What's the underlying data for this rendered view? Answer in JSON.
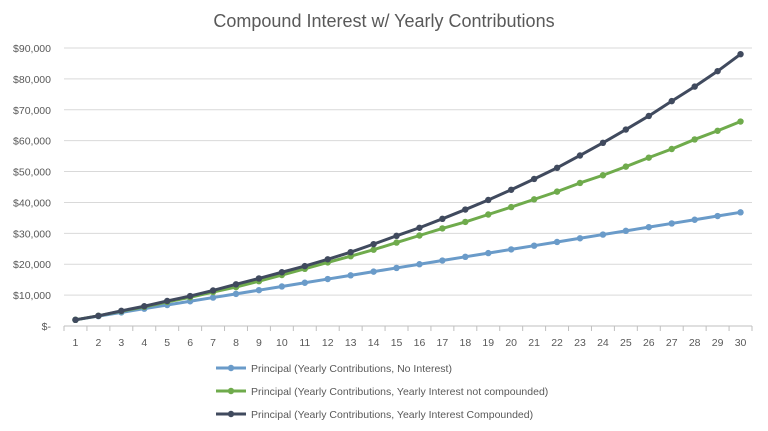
{
  "chart_data": {
    "type": "line",
    "title": "Compound Interest w/ Yearly Contributions",
    "xlabel": "",
    "ylabel": "",
    "x": [
      1,
      2,
      3,
      4,
      5,
      6,
      7,
      8,
      9,
      10,
      11,
      12,
      13,
      14,
      15,
      16,
      17,
      18,
      19,
      20,
      21,
      22,
      23,
      24,
      25,
      26,
      27,
      28,
      29,
      30
    ],
    "ylim": [
      0,
      90000
    ],
    "yticks": [
      0,
      10000,
      20000,
      30000,
      40000,
      50000,
      60000,
      70000,
      80000,
      90000
    ],
    "ytick_labels": [
      "$-",
      "$10,000",
      "$20,000",
      "$30,000",
      "$40,000",
      "$50,000",
      "$60,000",
      "$70,000",
      "$80,000",
      "$90,000"
    ],
    "grid": "horizontal",
    "legend_position": "bottom",
    "series": [
      {
        "name": "Principal (Yearly Contributions, No Interest)",
        "color": "#6a9bc9",
        "values": [
          2000,
          3200,
          4400,
          5600,
          6800,
          8000,
          9200,
          10400,
          11600,
          12800,
          14000,
          15200,
          16400,
          17600,
          18800,
          20000,
          21200,
          22400,
          23600,
          24800,
          26000,
          27200,
          28400,
          29600,
          30800,
          32000,
          33200,
          34400,
          35600,
          36800
        ]
      },
      {
        "name": "Principal (Yearly Contributions, Yearly Interest not compounded)",
        "color": "#6fab4c",
        "values": [
          2000,
          3300,
          4800,
          6200,
          7800,
          9300,
          11000,
          12600,
          14500,
          16500,
          18500,
          20600,
          22600,
          24700,
          27000,
          29300,
          31600,
          33700,
          36100,
          38500,
          41000,
          43500,
          46300,
          48800,
          51600,
          54500,
          57300,
          60400,
          63200,
          66200
        ]
      },
      {
        "name": "Principal (Yearly Contributions, Yearly Interest Compounded)",
        "color": "#404a5e",
        "values": [
          2000,
          3300,
          4900,
          6400,
          8100,
          9700,
          11500,
          13500,
          15400,
          17400,
          19400,
          21600,
          23900,
          26500,
          29200,
          31800,
          34700,
          37700,
          40800,
          44100,
          47600,
          51200,
          55200,
          59300,
          63600,
          68000,
          72800,
          77500,
          82500,
          88000
        ]
      }
    ]
  }
}
